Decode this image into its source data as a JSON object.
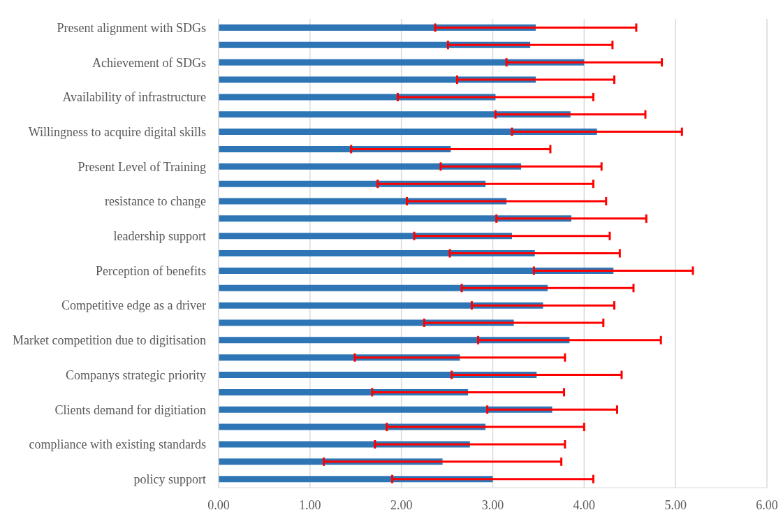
{
  "chart_data": {
    "type": "bar",
    "orientation": "horizontal",
    "categories": [
      "Present alignment with SDGs",
      null,
      "Achievement of SDGs",
      null,
      "Availability of infrastructure",
      null,
      "Willingness to acquire digital skills",
      null,
      "Present Level of Training",
      null,
      "resistance to change",
      null,
      "leadership support",
      null,
      "Perception of benefits",
      null,
      "Competitive edge as a driver",
      null,
      "Market competition due to digitisation",
      null,
      "Companys strategic priority",
      null,
      "Clients demand for digitiation",
      null,
      "compliance with existing standards",
      null,
      "policy support"
    ],
    "values": [
      3.47,
      3.41,
      4.0,
      3.47,
      3.03,
      3.85,
      4.14,
      2.54,
      3.31,
      2.92,
      3.15,
      3.86,
      3.21,
      3.46,
      4.32,
      3.6,
      3.55,
      3.23,
      3.84,
      2.64,
      3.48,
      2.73,
      3.65,
      2.92,
      2.75,
      2.45,
      3.0
    ],
    "errors": [
      1.1,
      0.9,
      0.85,
      0.86,
      1.07,
      0.82,
      0.93,
      1.09,
      0.88,
      1.18,
      1.09,
      0.82,
      1.07,
      0.93,
      0.87,
      0.94,
      0.78,
      0.98,
      1.0,
      1.15,
      0.93,
      1.05,
      0.71,
      1.08,
      1.04,
      1.3,
      1.1
    ],
    "color": "#2e75b6",
    "xlim": [
      0,
      6
    ],
    "xticks": [
      {
        "value": 0,
        "label": "0.00"
      },
      {
        "value": 1,
        "label": "1.00"
      },
      {
        "value": 2,
        "label": "2.00"
      },
      {
        "value": 3,
        "label": "3.00"
      },
      {
        "value": 4,
        "label": "4.00"
      },
      {
        "value": 5,
        "label": "5.00"
      },
      {
        "value": 6,
        "label": "6.00"
      }
    ],
    "grid": "x"
  }
}
